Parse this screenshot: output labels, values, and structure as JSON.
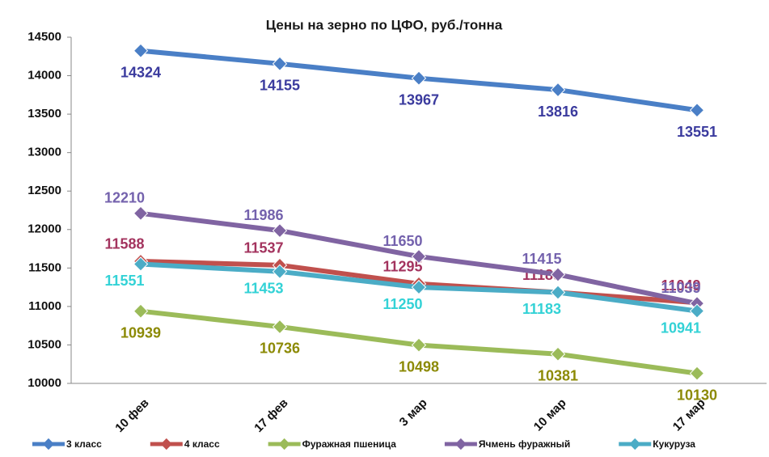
{
  "chart_data": {
    "type": "line",
    "title": "Цены на зерно по ЦФО, руб./тонна",
    "categories": [
      "10 фев",
      "17 фев",
      "3 мар",
      "10 мар",
      "17 мар"
    ],
    "ylim": [
      10000,
      14500
    ],
    "yticks": [
      10000,
      10500,
      11000,
      11500,
      12000,
      12500,
      13000,
      13500,
      14000,
      14500
    ],
    "grid": false,
    "series": [
      {
        "name": "3 класс",
        "color": "#4a7fc6",
        "label_color": "#3b3b9e",
        "values": [
          14324,
          14155,
          13967,
          13816,
          13551
        ]
      },
      {
        "name": "4 класс",
        "color": "#c0504d",
        "label_color": "#a3335e",
        "values": [
          11588,
          11537,
          11295,
          11183,
          11049
        ]
      },
      {
        "name": "Фуражная пшеница",
        "color": "#9bbb59",
        "label_color": "#8c8a05",
        "values": [
          10939,
          10736,
          10498,
          10381,
          10130
        ]
      },
      {
        "name": "Ячмень фуражный",
        "color": "#8064a2",
        "label_color": "#7462ad",
        "values": [
          12210,
          11986,
          11650,
          11415,
          11039
        ]
      },
      {
        "name": "Кукуруза",
        "color": "#4bacc6",
        "label_color": "#33d2d6",
        "values": [
          11551,
          11453,
          11250,
          11183,
          10941
        ]
      }
    ]
  }
}
